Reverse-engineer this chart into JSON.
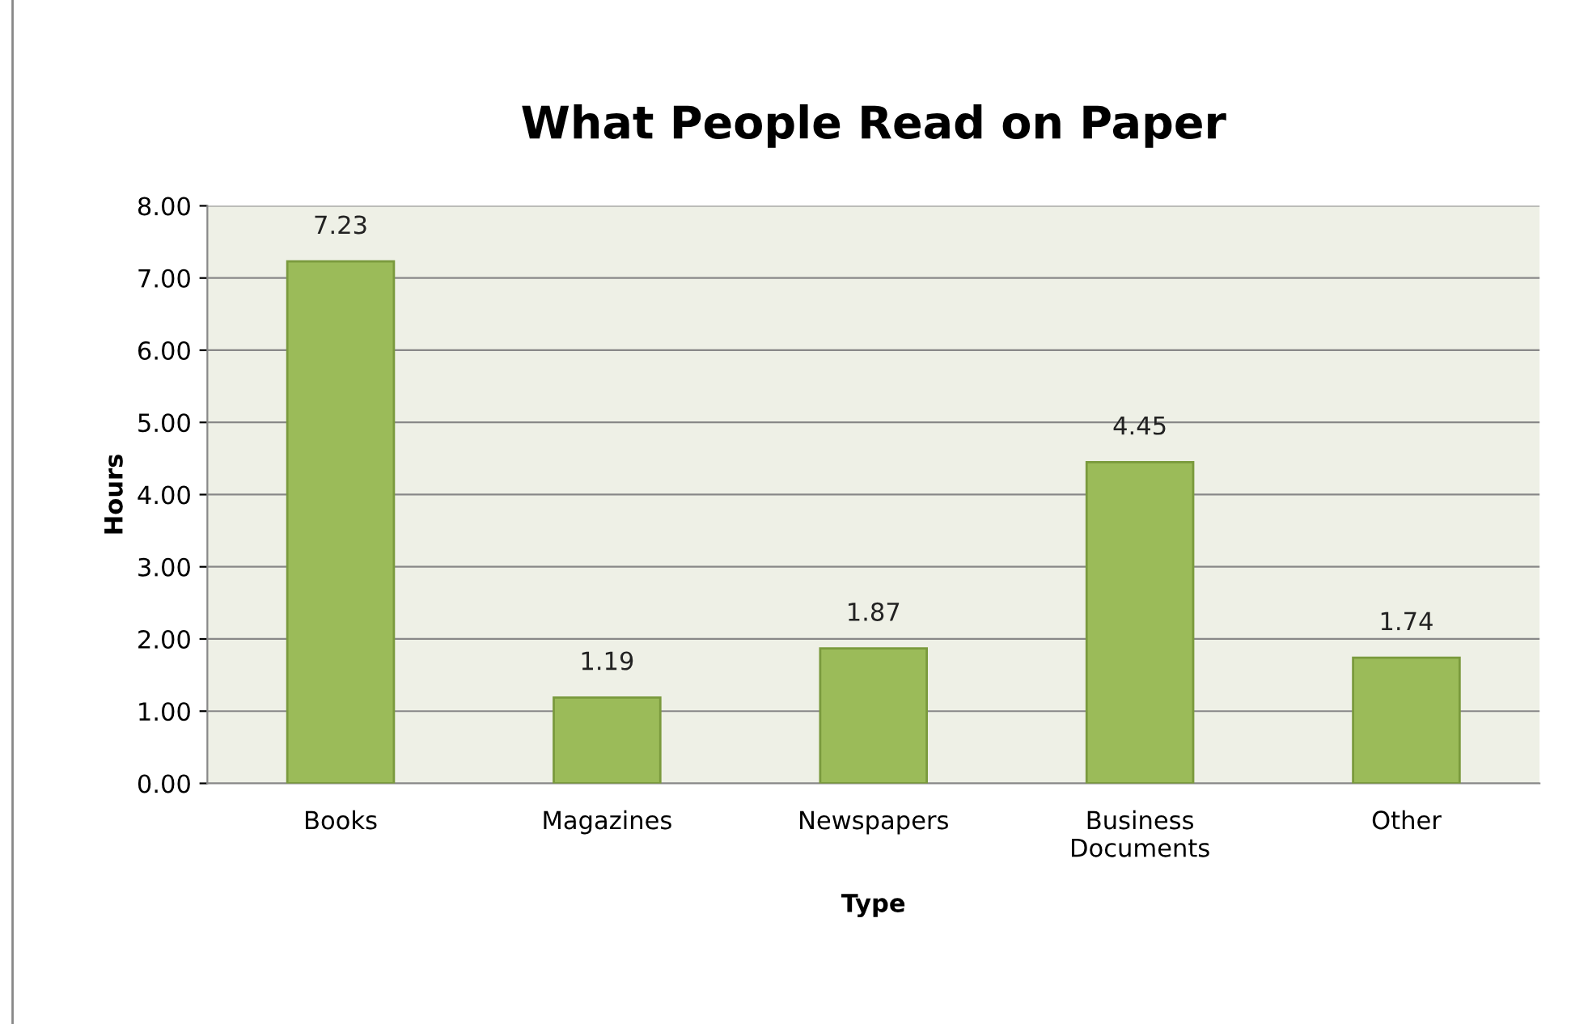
{
  "chart_data": {
    "type": "bar",
    "title": "What People Read on Paper",
    "xlabel": "Type",
    "ylabel": "Hours",
    "categories": [
      "Books",
      "Magazines",
      "Newspapers",
      "Business Documents",
      "Other"
    ],
    "values": [
      7.23,
      1.19,
      1.87,
      4.45,
      1.74
    ],
    "color": "#9bbb59",
    "ylim": [
      0,
      8
    ],
    "yticks": [
      {
        "value": 0,
        "label": "0.00"
      },
      {
        "value": 1,
        "label": "1.00"
      },
      {
        "value": 2,
        "label": "2.00"
      },
      {
        "value": 3,
        "label": "3.00"
      },
      {
        "value": 4,
        "label": "4.00"
      },
      {
        "value": 5,
        "label": "5.00"
      },
      {
        "value": 6,
        "label": "6.00"
      },
      {
        "value": 7,
        "label": "7.00"
      },
      {
        "value": 8,
        "label": "8.00"
      }
    ],
    "grid": "y",
    "legend": false,
    "data_labels": true
  }
}
